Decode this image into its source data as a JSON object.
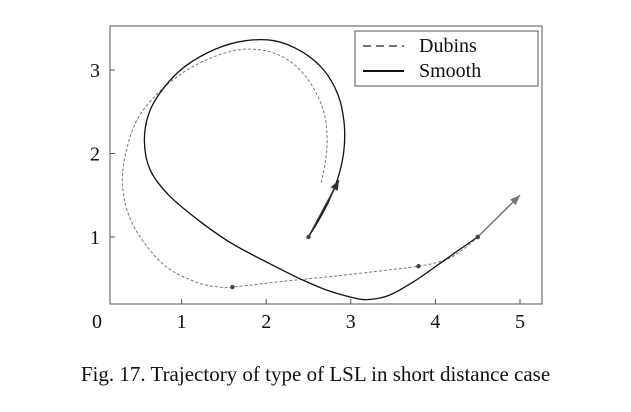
{
  "chart_data": {
    "type": "line",
    "title": "",
    "xlabel": "",
    "ylabel": "",
    "xlim": [
      0,
      5.2
    ],
    "ylim": [
      0,
      3.4
    ],
    "xticks": [
      0,
      1,
      2,
      3,
      4,
      5
    ],
    "yticks": [
      1,
      2,
      3
    ],
    "grid": false,
    "legend": {
      "location": "top-right"
    },
    "series": [
      {
        "name": "Dubins",
        "style": "dashed",
        "color": "#777777",
        "x": [
          2.65,
          2.7,
          2.72,
          2.68,
          2.55,
          2.35,
          2.1,
          1.8,
          1.5,
          1.15,
          0.8,
          0.5,
          0.35,
          0.3,
          0.38,
          0.58,
          0.85,
          1.2,
          1.45,
          1.6,
          2.2,
          2.8,
          3.4,
          3.8,
          4.1,
          4.3,
          4.5
        ],
        "y": [
          1.65,
          1.9,
          2.2,
          2.5,
          2.8,
          3.05,
          3.2,
          3.25,
          3.2,
          3.05,
          2.8,
          2.45,
          2.05,
          1.65,
          1.25,
          0.9,
          0.62,
          0.45,
          0.4,
          0.4,
          0.47,
          0.53,
          0.6,
          0.65,
          0.72,
          0.83,
          1.0
        ],
        "markers": [
          [
            1.6,
            0.4
          ],
          [
            3.8,
            0.65
          ],
          [
            4.5,
            1.0
          ]
        ]
      },
      {
        "name": "Smooth",
        "style": "solid",
        "color": "#111111",
        "x": [
          2.5,
          2.62,
          2.75,
          2.86,
          2.92,
          2.92,
          2.85,
          2.68,
          2.42,
          2.1,
          1.75,
          1.4,
          1.05,
          0.8,
          0.62,
          0.56,
          0.63,
          0.85,
          1.2,
          1.55,
          1.85,
          2.1,
          2.4,
          2.7,
          3.0,
          3.2,
          3.45,
          3.75,
          4.05,
          4.3,
          4.5
        ],
        "y": [
          1.0,
          1.2,
          1.45,
          1.75,
          2.05,
          2.38,
          2.7,
          3.0,
          3.22,
          3.35,
          3.35,
          3.25,
          3.05,
          2.8,
          2.5,
          2.15,
          1.8,
          1.5,
          1.2,
          0.95,
          0.78,
          0.65,
          0.5,
          0.37,
          0.28,
          0.25,
          0.3,
          0.47,
          0.68,
          0.86,
          1.0
        ],
        "markers": [
          [
            2.5,
            1.0
          ],
          [
            4.5,
            1.0
          ]
        ]
      }
    ],
    "arrows": [
      {
        "series": "Smooth",
        "from": [
          2.5,
          1.0
        ],
        "to": [
          2.86,
          1.68
        ]
      },
      {
        "series": "Dubins",
        "from": [
          4.5,
          1.0
        ],
        "to": [
          5.0,
          1.5
        ]
      }
    ]
  },
  "caption": "Fig. 17.  Trajectory of type of LSL in short distance case"
}
